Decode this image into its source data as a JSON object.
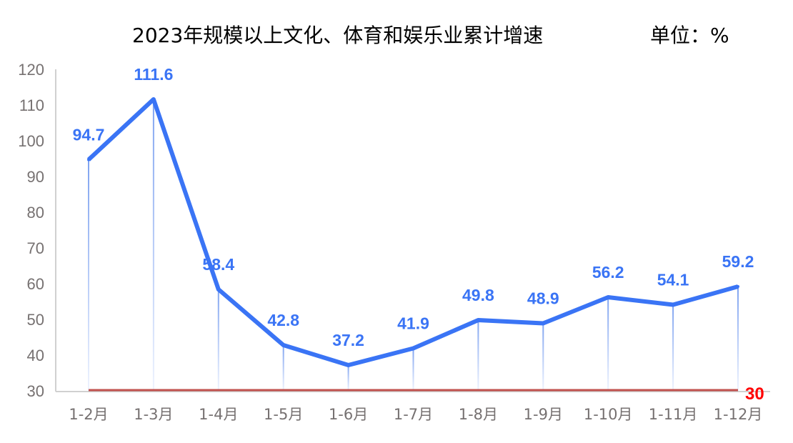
{
  "chart_data": {
    "type": "line",
    "title": "2023年规模以上文化、体育和娱乐业累计增速",
    "unit_label": "单位：%",
    "categories": [
      "1-2月",
      "1-3月",
      "1-4月",
      "1-5月",
      "1-6月",
      "1-7月",
      "1-8月",
      "1-9月",
      "1-10月",
      "1-11月",
      "1-12月"
    ],
    "series": [
      {
        "values": [
          94.7,
          111.6,
          58.4,
          42.8,
          37.2,
          41.9,
          49.8,
          48.9,
          56.2,
          54.1,
          59.2
        ],
        "color": "#3a74f5",
        "labels": "all"
      },
      {
        "values": [
          30,
          30,
          30,
          30,
          30,
          30,
          30,
          30,
          30,
          30,
          30
        ],
        "color": "#c0504d",
        "label_color": "#ff0000",
        "labels": "last"
      }
    ],
    "ylim": [
      30,
      120
    ],
    "yticks": [
      30,
      40,
      50,
      60,
      70,
      80,
      90,
      100,
      110,
      120
    ],
    "grid": false,
    "xlabel": "",
    "ylabel": ""
  }
}
